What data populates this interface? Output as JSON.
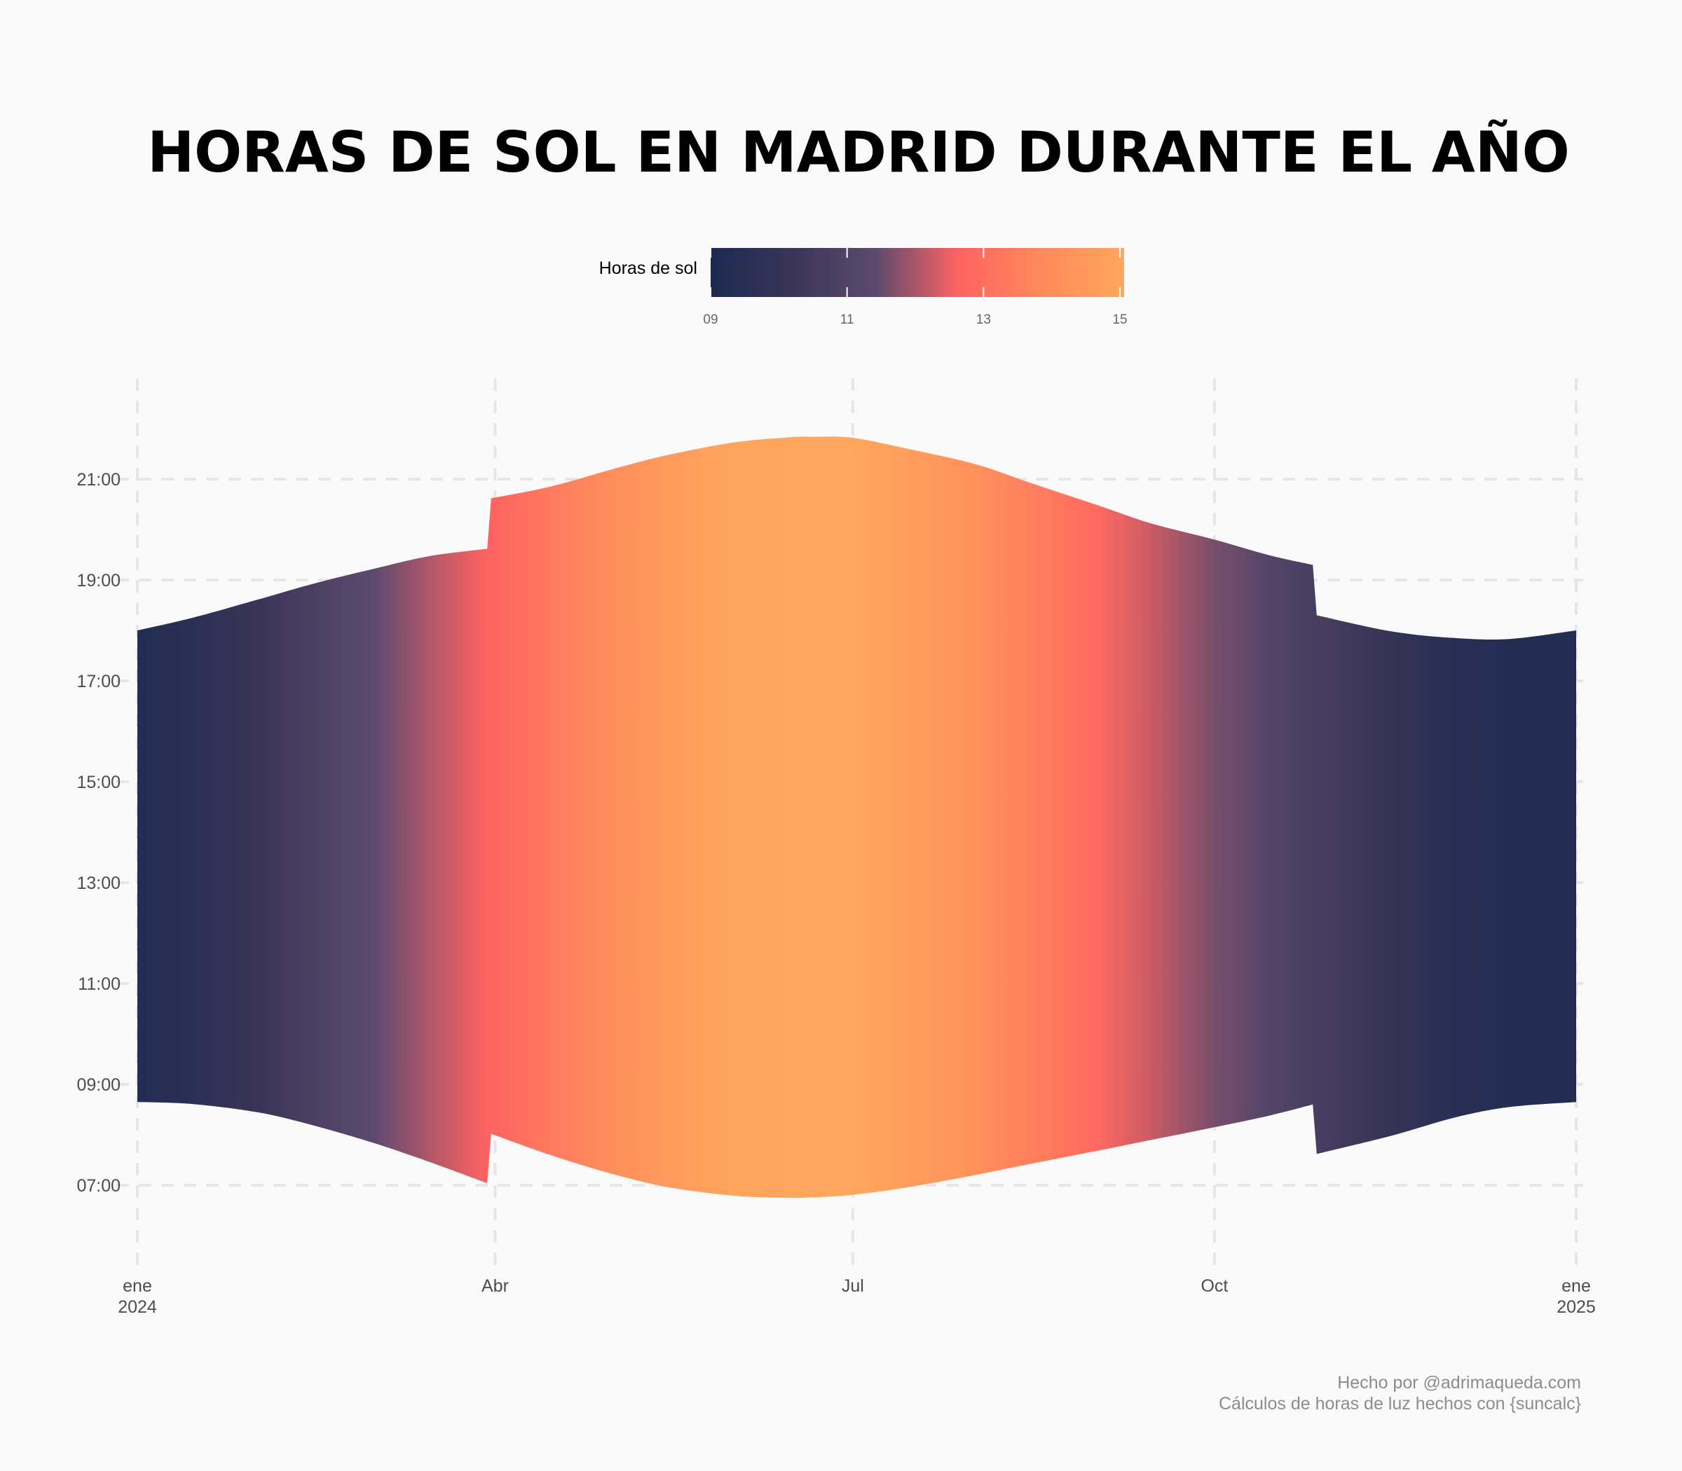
{
  "chart_data": {
    "type": "area",
    "title": "HORAS DE SOL EN MADRID DURANTE EL AÑO",
    "legend": {
      "title": "Horas de sol",
      "position": "top",
      "ticks": [
        "09",
        "11",
        "13",
        "15"
      ],
      "range": [
        9,
        15
      ],
      "colors": [
        "#1b2a52",
        "#3a3558",
        "#5c4a6e",
        "#ff6361",
        "#ff8a5b",
        "#ffa75c"
      ]
    },
    "y_axis": {
      "ticks": [
        "07:00",
        "09:00",
        "11:00",
        "13:00",
        "15:00",
        "17:00",
        "19:00",
        "21:00"
      ],
      "range_hours": [
        5.5,
        23.0
      ]
    },
    "x_axis": {
      "ticks": [
        {
          "date": "2024-01-01",
          "label": "ene",
          "sublabel": "2024"
        },
        {
          "date": "2024-04-01",
          "label": "Abr",
          "sublabel": ""
        },
        {
          "date": "2024-07-01",
          "label": "Jul",
          "sublabel": ""
        },
        {
          "date": "2024-10-01",
          "label": "Oct",
          "sublabel": ""
        },
        {
          "date": "2025-01-01",
          "label": "ene",
          "sublabel": "2025"
        }
      ],
      "range": [
        "2024-01-01",
        "2025-01-01"
      ]
    },
    "grid": true,
    "series": [
      {
        "date": [
          "2024-01-01",
          "2024-01-15",
          "2024-02-01",
          "2024-02-15",
          "2024-03-01",
          "2024-03-15",
          "2024-03-30",
          "2024-03-31",
          "2024-04-15",
          "2024-05-01",
          "2024-05-15",
          "2024-06-01",
          "2024-06-15",
          "2024-06-21",
          "2024-07-01",
          "2024-07-15",
          "2024-08-01",
          "2024-08-15",
          "2024-09-01",
          "2024-09-15",
          "2024-10-01",
          "2024-10-15",
          "2024-10-26",
          "2024-10-27",
          "2024-11-15",
          "2024-12-01",
          "2024-12-15",
          "2025-01-01"
        ],
        "sunrise": [
          8.65,
          8.61,
          8.44,
          8.18,
          7.84,
          7.47,
          7.04,
          8.02,
          7.6,
          7.22,
          6.96,
          6.79,
          6.75,
          6.76,
          6.81,
          6.96,
          7.2,
          7.42,
          7.68,
          7.9,
          8.15,
          8.38,
          8.6,
          7.62,
          7.98,
          8.34,
          8.55,
          8.65
        ],
        "sunset": [
          18.0,
          18.25,
          18.62,
          18.93,
          19.22,
          19.47,
          19.62,
          20.62,
          20.85,
          21.2,
          21.48,
          21.73,
          21.83,
          21.84,
          21.82,
          21.6,
          21.3,
          20.93,
          20.49,
          20.12,
          19.8,
          19.49,
          19.3,
          18.3,
          17.98,
          17.85,
          17.83,
          18.0
        ],
        "daylight_hours": [
          9.3,
          9.6,
          10.2,
          10.8,
          11.4,
          12.0,
          12.6,
          12.6,
          13.3,
          14.0,
          14.5,
          14.9,
          15.1,
          15.1,
          15.0,
          14.6,
          14.1,
          13.5,
          12.8,
          12.2,
          11.6,
          11.1,
          10.7,
          10.7,
          10.0,
          9.5,
          9.3,
          9.3
        ]
      }
    ],
    "caption": [
      "Hecho por @adrimaqueda.com",
      "Cálculos de horas de luz hechos con {suncalc}"
    ]
  }
}
